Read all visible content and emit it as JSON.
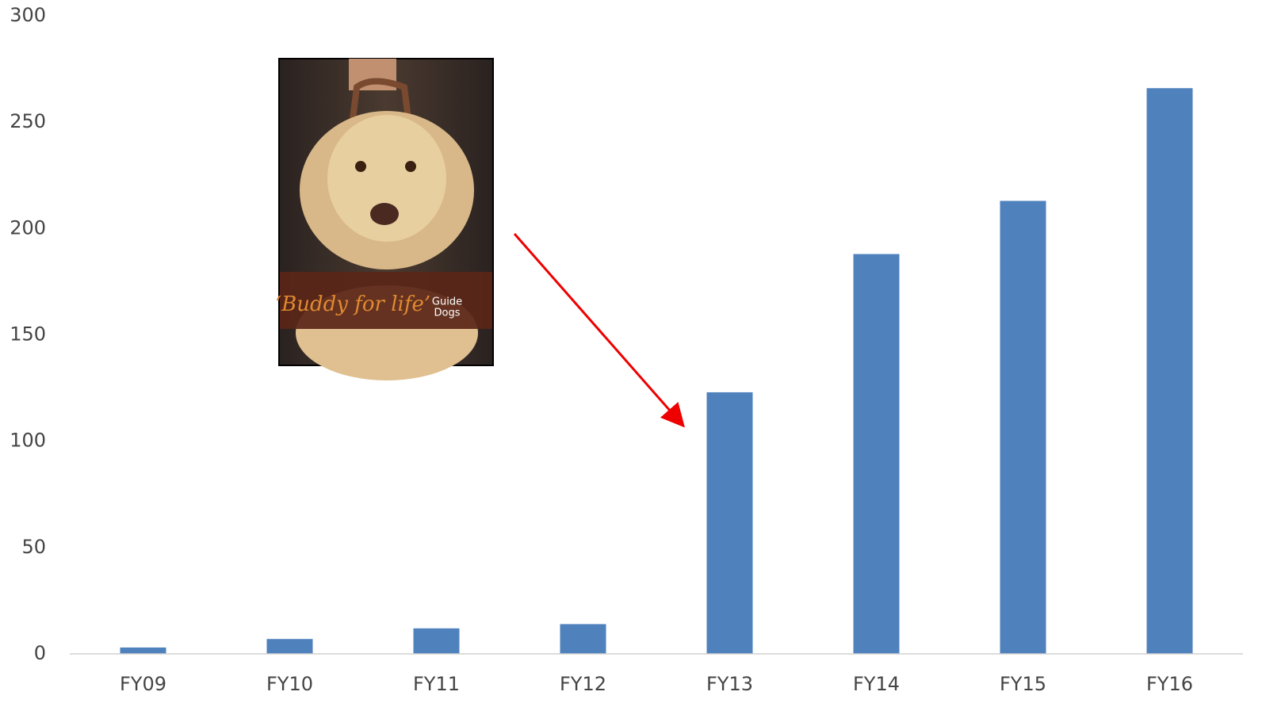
{
  "chart_data": {
    "type": "bar",
    "categories": [
      "FY09",
      "FY10",
      "FY11",
      "FY12",
      "FY13",
      "FY14",
      "FY15",
      "FY16"
    ],
    "values": [
      3,
      7,
      12,
      14,
      123,
      188,
      213,
      266
    ],
    "color": "#4f81bd",
    "ylim": [
      0,
      300
    ],
    "yticks": [
      0,
      50,
      100,
      150,
      200,
      250,
      300
    ],
    "grid": false,
    "image_texts": [
      "‘Buddy for life’",
      "Guide",
      "Dogs"
    ]
  }
}
